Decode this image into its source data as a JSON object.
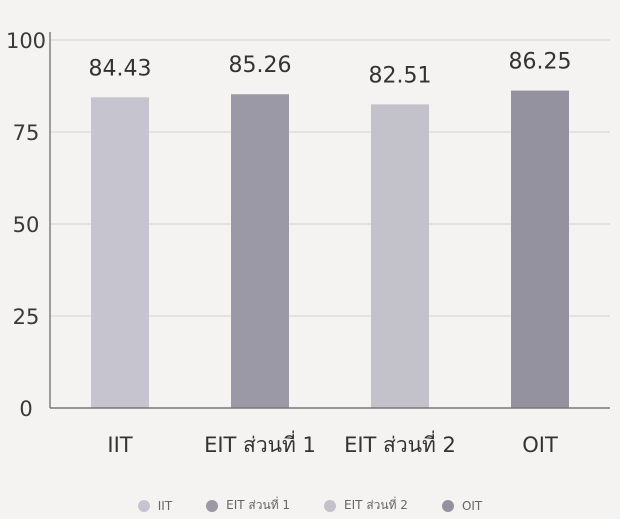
{
  "chart_data": {
    "type": "bar",
    "categories": [
      "IIT",
      "EIT ส่วนที่ 1",
      "EIT ส่วนที่ 2",
      "OIT"
    ],
    "values": [
      84.43,
      85.26,
      82.51,
      86.25
    ],
    "value_labels": [
      "84.43",
      "85.26",
      "82.51",
      "86.25"
    ],
    "ylim": [
      0,
      100
    ],
    "yticks": [
      0,
      25,
      50,
      75,
      100
    ],
    "grid": true,
    "legend_position": "bottom",
    "colors": [
      "#c6c5cf",
      "#9a99a5",
      "#c3c2ca",
      "#93929e"
    ],
    "title": "",
    "xlabel": "",
    "ylabel": ""
  },
  "legend": [
    {
      "label": "IIT",
      "color": "#c6c5cf"
    },
    {
      "label": "EIT ส่วนที่ 1",
      "color": "#9a99a5"
    },
    {
      "label": "EIT ส่วนที่ 2",
      "color": "#c3c2ca"
    },
    {
      "label": "OIT",
      "color": "#93929e"
    }
  ]
}
